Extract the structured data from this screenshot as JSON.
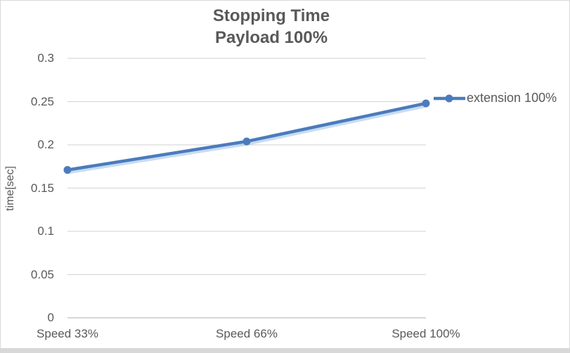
{
  "title": {
    "line1": "Stopping Time",
    "line2": "Payload 100%"
  },
  "legend": {
    "label": "extension 100%"
  },
  "axes": {
    "y_title": "time[sec]"
  },
  "colors": {
    "series": "#4b7bbd",
    "series_shadow": "#a3c4e8",
    "grid": "#d9d9d9",
    "axis": "#bfbfbf",
    "text": "#595959"
  },
  "chart_data": {
    "type": "line",
    "title": "Stopping Time Payload 100%",
    "categories": [
      "Speed 33%",
      "Speed 66%",
      "Speed 100%"
    ],
    "series": [
      {
        "name": "extension 100%",
        "values": [
          0.171,
          0.204,
          0.248
        ]
      }
    ],
    "xlabel": "",
    "ylabel": "time[sec]",
    "ylim": [
      0,
      0.3
    ],
    "ytick_step": 0.05,
    "ytick_labels": [
      "0.3",
      "0.25",
      "0.2",
      "0.15",
      "0.1",
      "0.05",
      "0"
    ],
    "grid": "horizontal",
    "legend_position": "right",
    "marker": "circle"
  }
}
